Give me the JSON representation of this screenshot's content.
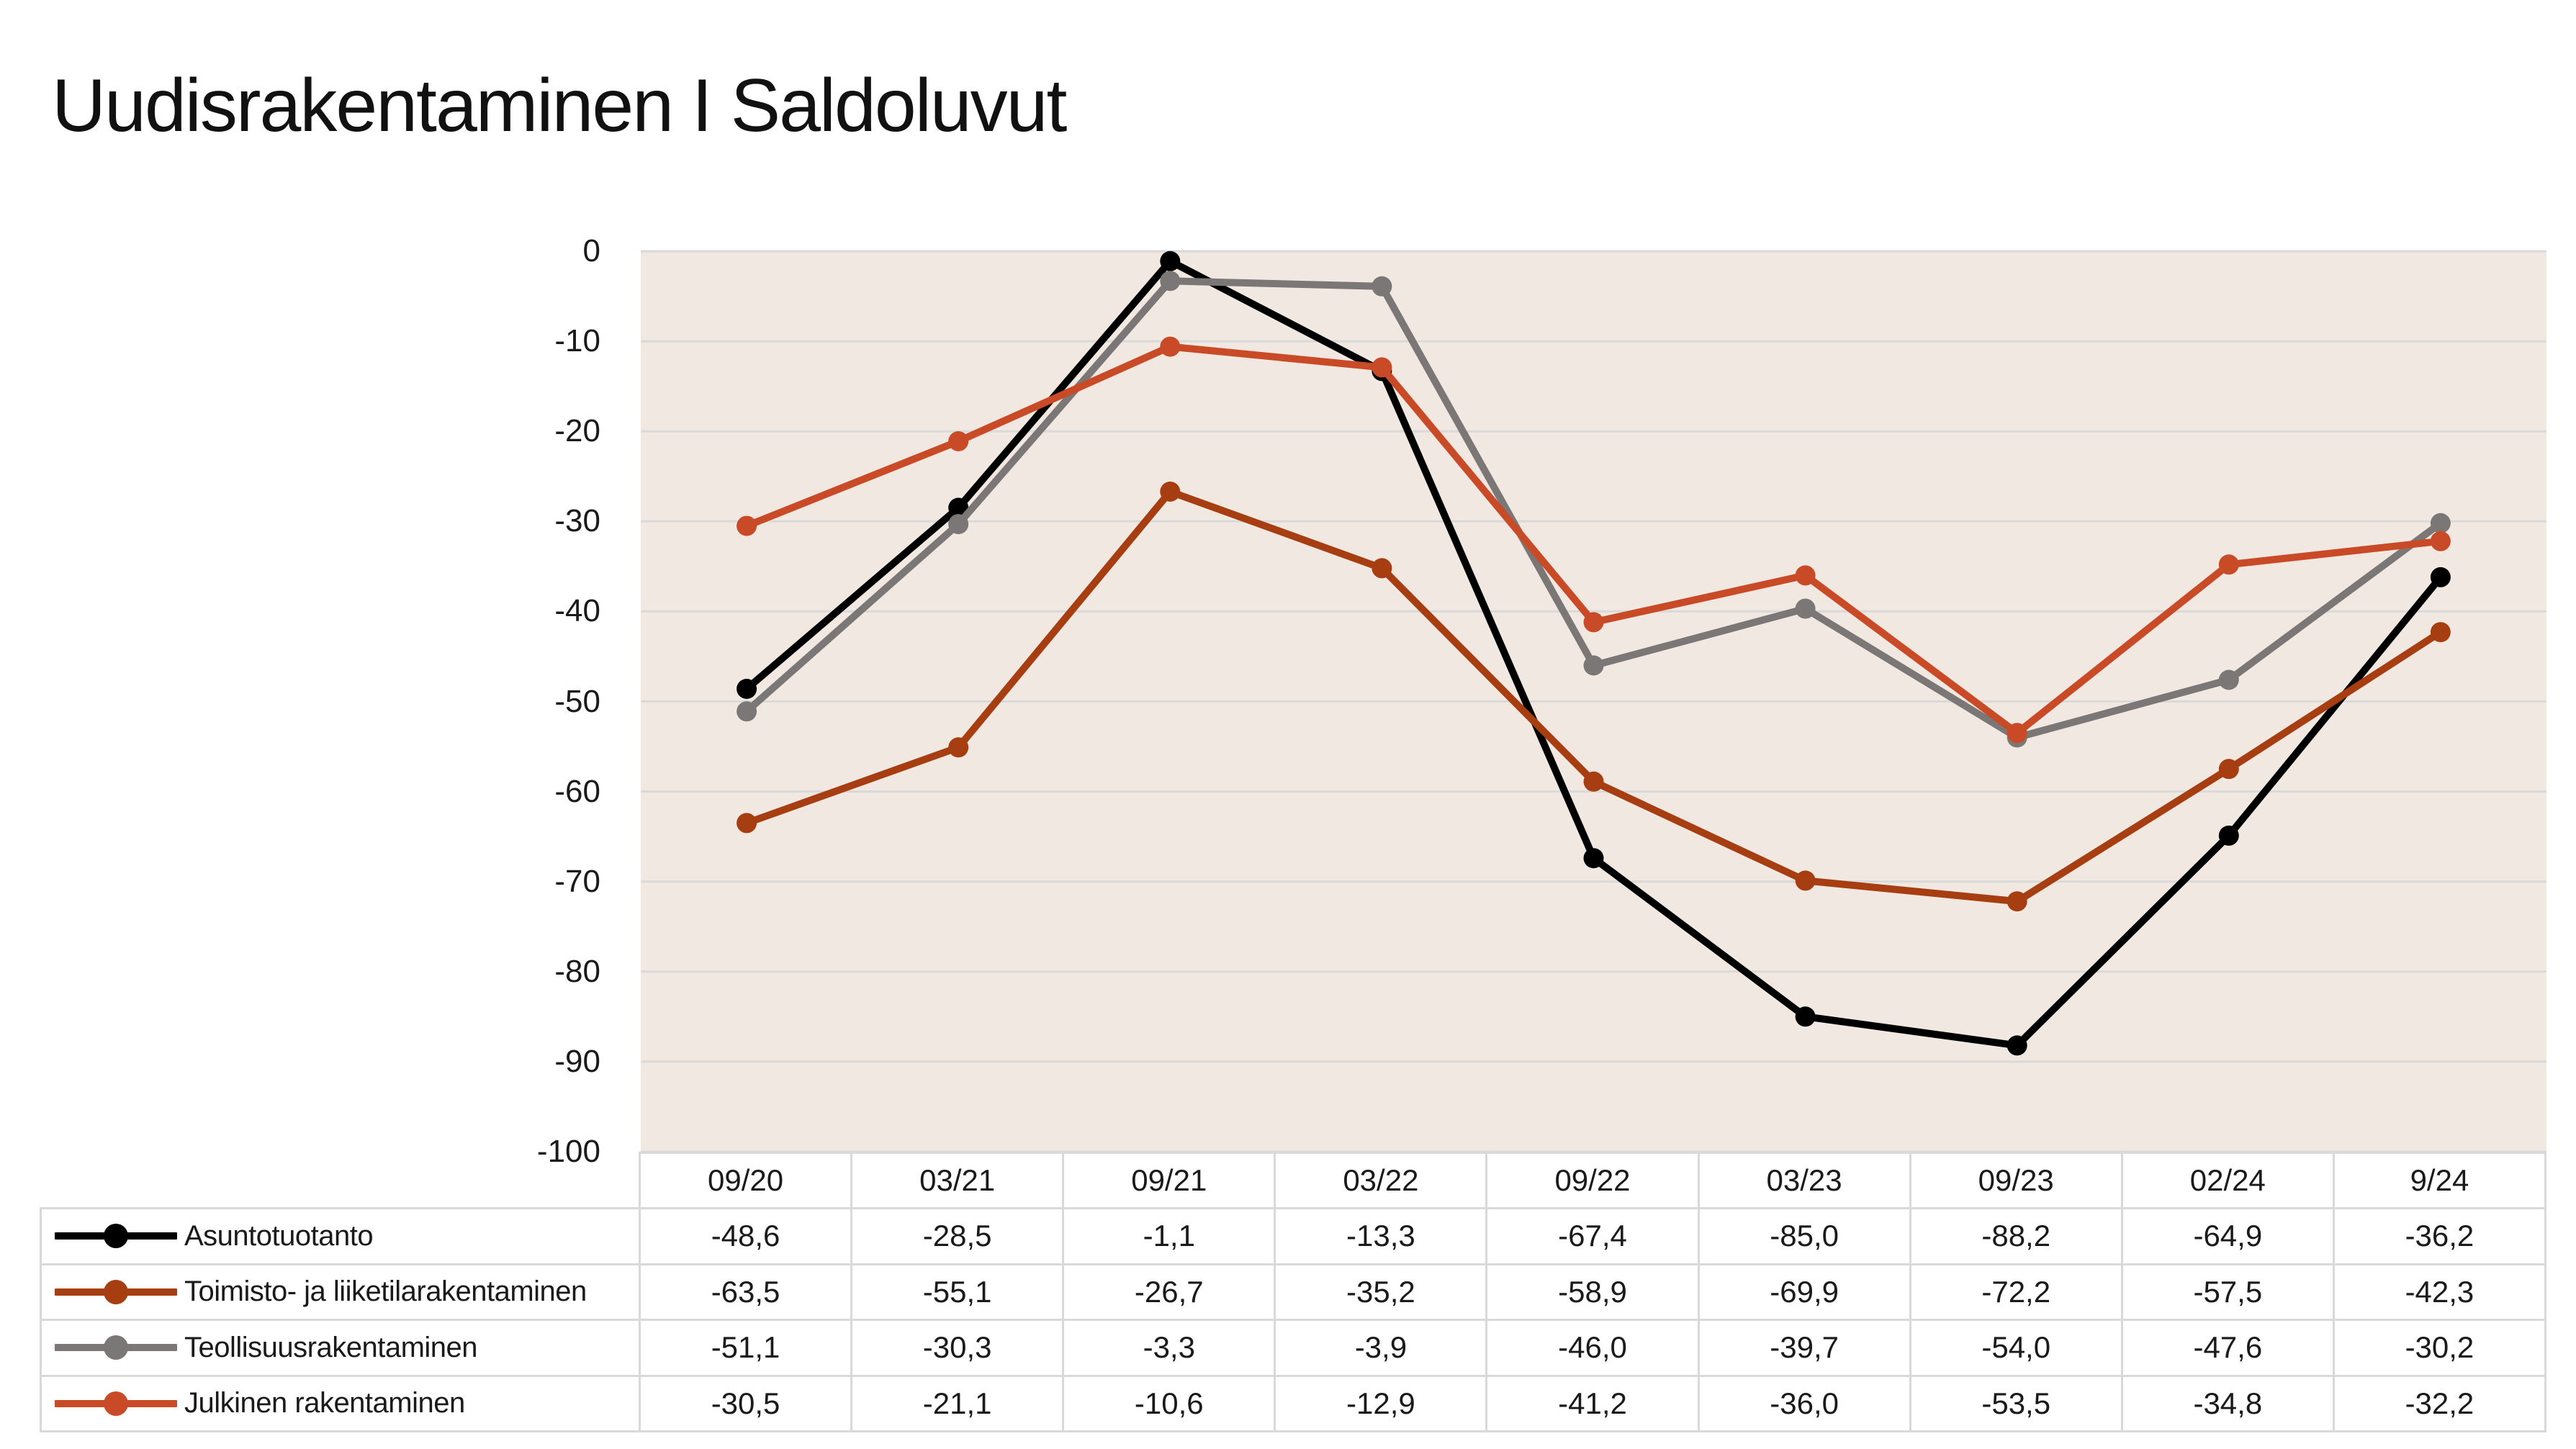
{
  "title": "Uudisrakentaminen I Saldoluvut",
  "colors": {
    "background": "#ffffff",
    "plot_background": "#f2e8e2",
    "gridline": "#d9d9d9",
    "table_border": "#d9d9d9",
    "text": "#1a1a1a"
  },
  "chart_data": {
    "type": "line",
    "title": "Uudisrakentaminen I Saldoluvut",
    "categories": [
      "09/20",
      "03/21",
      "09/21",
      "03/22",
      "09/22",
      "03/23",
      "09/23",
      "02/24",
      "9/24"
    ],
    "series": [
      {
        "name": "Asuntotuotanto",
        "color": "#000000",
        "values": [
          -48.6,
          -28.5,
          -1.1,
          -13.3,
          -67.4,
          -85.0,
          -88.2,
          -64.9,
          -36.2
        ]
      },
      {
        "name": "Toimisto- ja liiketilarakentaminen",
        "color": "#a63e12",
        "values": [
          -63.5,
          -55.1,
          -26.7,
          -35.2,
          -58.9,
          -69.9,
          -72.2,
          -57.5,
          -42.3
        ]
      },
      {
        "name": "Teollisuusrakentaminen",
        "color": "#7b7777",
        "values": [
          -51.1,
          -30.3,
          -3.3,
          -3.9,
          -46.0,
          -39.7,
          -54.0,
          -47.6,
          -30.2
        ]
      },
      {
        "name": "Julkinen rakentaminen",
        "color": "#c94a26",
        "values": [
          -30.5,
          -21.1,
          -10.6,
          -12.9,
          -41.2,
          -36.0,
          -53.5,
          -34.8,
          -32.2
        ]
      }
    ],
    "xlabel": "",
    "ylabel": "",
    "ylim": [
      -100,
      0
    ],
    "yticks": [
      0,
      -10,
      -20,
      -30,
      -40,
      -50,
      -60,
      -70,
      -80,
      -90,
      -100
    ],
    "ytick_labels": [
      "0",
      "-10",
      "-20",
      "-30",
      "-40",
      "-50",
      "-60",
      "-70",
      "-80",
      "-90",
      "-100"
    ],
    "grid": "horizontal",
    "legend_position": "table-rows-left",
    "marker": "circle",
    "plot_bg": "#f2e8e2"
  },
  "table": {
    "columns": [
      "09/20",
      "03/21",
      "09/21",
      "03/22",
      "09/22",
      "03/23",
      "09/23",
      "02/24",
      "9/24"
    ],
    "rows": [
      {
        "label": "Asuntotuotanto",
        "color": "#000000",
        "values": [
          "-48,6",
          "-28,5",
          "-1,1",
          "-13,3",
          "-67,4",
          "-85,0",
          "-88,2",
          "-64,9",
          "-36,2"
        ]
      },
      {
        "label": "Toimisto- ja liiketilarakentaminen",
        "color": "#a63e12",
        "values": [
          "-63,5",
          "-55,1",
          "-26,7",
          "-35,2",
          "-58,9",
          "-69,9",
          "-72,2",
          "-57,5",
          "-42,3"
        ]
      },
      {
        "label": "Teollisuusrakentaminen",
        "color": "#7b7777",
        "values": [
          "-51,1",
          "-30,3",
          "-3,3",
          "-3,9",
          "-46,0",
          "-39,7",
          "-54,0",
          "-47,6",
          "-30,2"
        ]
      },
      {
        "label": "Julkinen rakentaminen",
        "color": "#c94a26",
        "values": [
          "-30,5",
          "-21,1",
          "-10,6",
          "-12,9",
          "-41,2",
          "-36,0",
          "-53,5",
          "-34,8",
          "-32,2"
        ]
      }
    ]
  }
}
